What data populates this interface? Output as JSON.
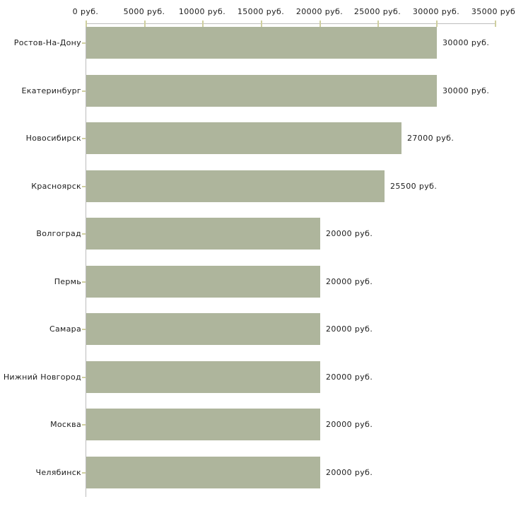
{
  "chart_data": {
    "type": "bar",
    "orientation": "horizontal",
    "title": "",
    "xlabel": "",
    "ylabel": "",
    "xlim": [
      0,
      35000
    ],
    "grid": "off",
    "legend": "none",
    "axis_position": "top",
    "x_tick_values": [
      0,
      5000,
      10000,
      15000,
      20000,
      25000,
      30000,
      35000
    ],
    "x_tick_labels": [
      "0 руб.",
      "5000 руб.",
      "10000 руб.",
      "15000 руб.",
      "20000 руб.",
      "25000 руб.",
      "30000 руб.",
      "35000 руб."
    ],
    "categories": [
      "Ростов-На-Дону",
      "Екатеринбург",
      "Новосибирск",
      "Красноярск",
      "Волгоград",
      "Пермь",
      "Самара",
      "Нижний Новгород",
      "Москва",
      "Челябинск"
    ],
    "values": [
      30000,
      30000,
      27000,
      25500,
      20000,
      20000,
      20000,
      20000,
      20000,
      20000
    ],
    "bar_labels": [
      "30000 руб.",
      "30000 руб.",
      "27000 руб.",
      "25500 руб.",
      "20000 руб.",
      "20000 руб.",
      "20000 руб.",
      "20000 руб.",
      "20000 руб.",
      "20000 руб."
    ],
    "colors": {
      "bar": "#aeb59c",
      "axis_line": "#bdbdbd",
      "tick": "#cfcf9f",
      "text": "#1c1c1c",
      "background": "#ffffff"
    }
  }
}
